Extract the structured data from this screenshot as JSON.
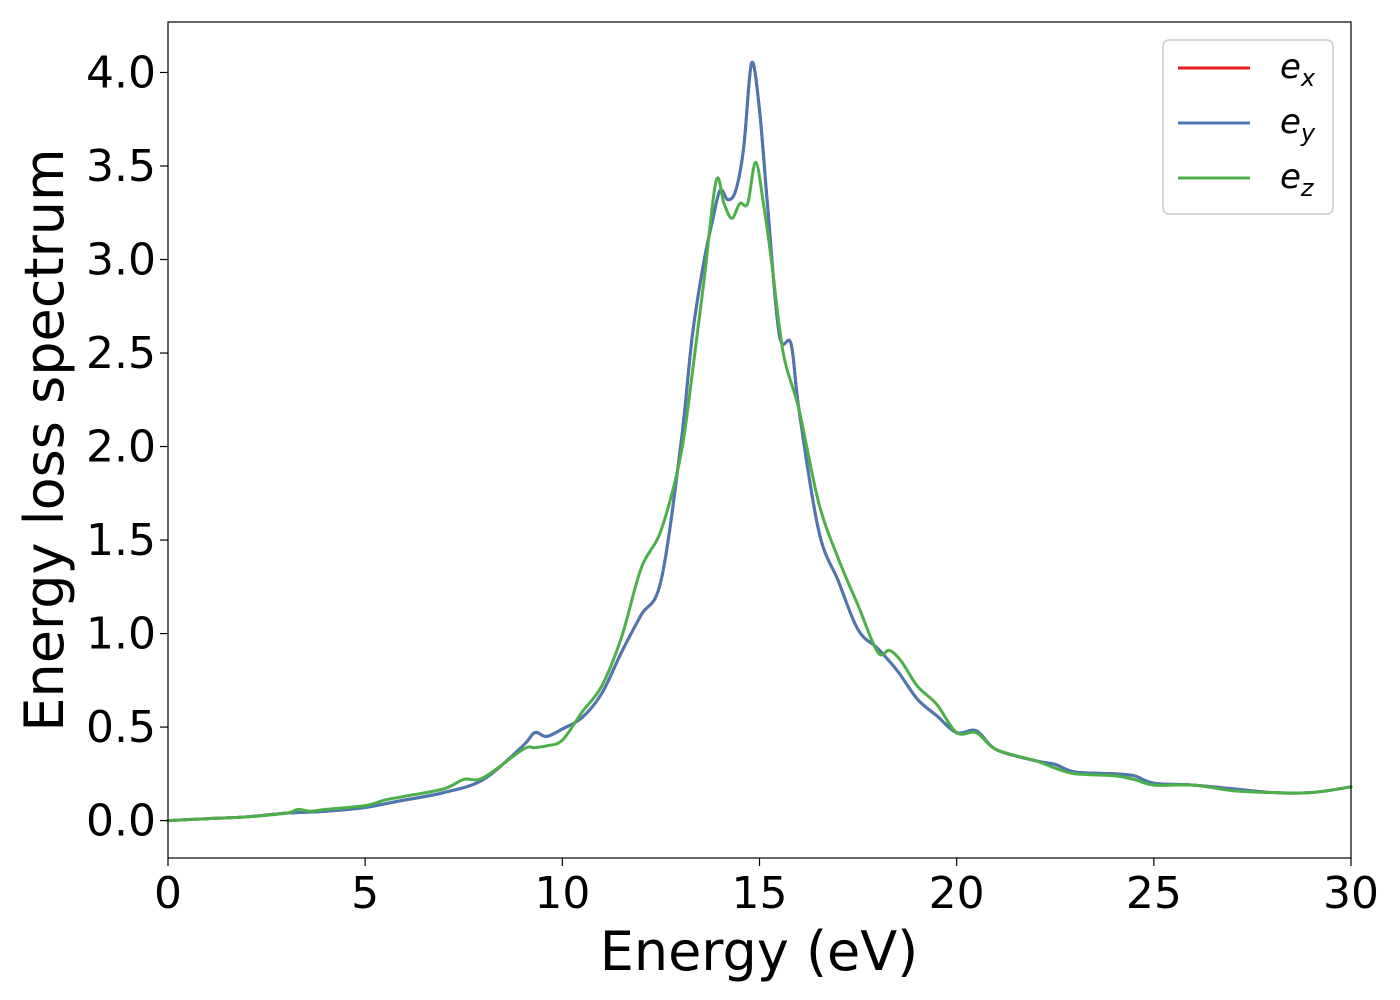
{
  "chart_data": {
    "type": "line",
    "xlabel": "Energy (eV)",
    "ylabel": "Energy loss spectrum",
    "xlim": [
      0,
      30
    ],
    "ylim": [
      -0.2,
      4.27
    ],
    "xticks": [
      "0",
      "5",
      "10",
      "15",
      "20",
      "25",
      "30"
    ],
    "yticks": [
      "0.0",
      "0.5",
      "1.0",
      "1.5",
      "2.0",
      "2.5",
      "3.0",
      "3.5",
      "4.0"
    ],
    "grid": false,
    "legend_position": "top-right",
    "series": [
      {
        "name": "e",
        "subscript": "x",
        "color": "#e41a1c",
        "x": [
          0,
          1,
          2,
          3,
          4,
          5,
          5.5,
          6,
          7,
          8,
          9,
          9.3,
          9.6,
          10,
          10.5,
          11,
          11.5,
          12,
          12.5,
          13,
          13.3,
          13.6,
          13.8,
          14,
          14.2,
          14.4,
          14.6,
          14.8,
          15,
          15.2,
          15.5,
          15.8,
          16,
          16.5,
          17,
          17.5,
          18,
          18.5,
          19,
          19.5,
          20,
          20.5,
          21,
          22,
          22.5,
          23,
          24,
          24.5,
          25,
          26,
          27,
          28,
          29,
          30
        ],
        "y": [
          0,
          0.01,
          0.02,
          0.04,
          0.05,
          0.07,
          0.09,
          0.11,
          0.15,
          0.22,
          0.4,
          0.47,
          0.45,
          0.49,
          0.55,
          0.68,
          0.9,
          1.1,
          1.28,
          2.0,
          2.6,
          3.0,
          3.2,
          3.37,
          3.32,
          3.37,
          3.6,
          4.05,
          3.8,
          3.3,
          2.6,
          2.55,
          2.2,
          1.55,
          1.28,
          1.02,
          0.92,
          0.8,
          0.65,
          0.56,
          0.47,
          0.48,
          0.38,
          0.32,
          0.3,
          0.26,
          0.25,
          0.24,
          0.2,
          0.19,
          0.17,
          0.15,
          0.15,
          0.18
        ]
      },
      {
        "name": "e",
        "subscript": "y",
        "color": "#4a78b3",
        "x": [
          0,
          1,
          2,
          3,
          4,
          5,
          5.5,
          6,
          7,
          8,
          9,
          9.3,
          9.6,
          10,
          10.5,
          11,
          11.5,
          12,
          12.5,
          13,
          13.3,
          13.6,
          13.8,
          14,
          14.2,
          14.4,
          14.6,
          14.8,
          15,
          15.2,
          15.5,
          15.8,
          16,
          16.5,
          17,
          17.5,
          18,
          18.5,
          19,
          19.5,
          20,
          20.5,
          21,
          22,
          22.5,
          23,
          24,
          24.5,
          25,
          26,
          27,
          28,
          29,
          30
        ],
        "y": [
          0,
          0.01,
          0.02,
          0.04,
          0.05,
          0.07,
          0.09,
          0.11,
          0.15,
          0.22,
          0.4,
          0.47,
          0.45,
          0.49,
          0.55,
          0.68,
          0.9,
          1.1,
          1.28,
          2.0,
          2.6,
          3.0,
          3.2,
          3.37,
          3.32,
          3.37,
          3.6,
          4.05,
          3.8,
          3.3,
          2.6,
          2.55,
          2.2,
          1.55,
          1.28,
          1.02,
          0.92,
          0.8,
          0.65,
          0.56,
          0.47,
          0.48,
          0.38,
          0.32,
          0.3,
          0.26,
          0.25,
          0.24,
          0.2,
          0.19,
          0.17,
          0.15,
          0.15,
          0.18
        ]
      },
      {
        "name": "e",
        "subscript": "z",
        "color": "#4daf4a",
        "x": [
          0,
          1,
          2,
          3,
          3.3,
          3.6,
          4,
          5,
          5.5,
          6,
          7,
          7.5,
          8,
          9,
          9.3,
          9.6,
          10,
          10.5,
          11,
          11.5,
          12,
          12.5,
          13,
          13.3,
          13.6,
          13.9,
          14.1,
          14.3,
          14.5,
          14.7,
          14.9,
          15.1,
          15.3,
          15.6,
          16,
          16.5,
          17,
          17.5,
          18,
          18.3,
          18.6,
          19,
          19.5,
          20,
          20.5,
          21,
          22,
          22.5,
          23,
          24,
          24.5,
          25,
          26,
          27,
          28,
          29,
          30
        ],
        "y": [
          0,
          0.01,
          0.02,
          0.04,
          0.06,
          0.05,
          0.06,
          0.08,
          0.11,
          0.13,
          0.17,
          0.22,
          0.23,
          0.38,
          0.39,
          0.4,
          0.43,
          0.58,
          0.72,
          0.98,
          1.35,
          1.55,
          1.95,
          2.4,
          2.9,
          3.42,
          3.3,
          3.22,
          3.3,
          3.3,
          3.52,
          3.3,
          3.0,
          2.5,
          2.2,
          1.7,
          1.4,
          1.15,
          0.9,
          0.91,
          0.85,
          0.72,
          0.62,
          0.47,
          0.47,
          0.38,
          0.32,
          0.28,
          0.25,
          0.24,
          0.22,
          0.19,
          0.19,
          0.16,
          0.15,
          0.15,
          0.18
        ]
      }
    ]
  }
}
